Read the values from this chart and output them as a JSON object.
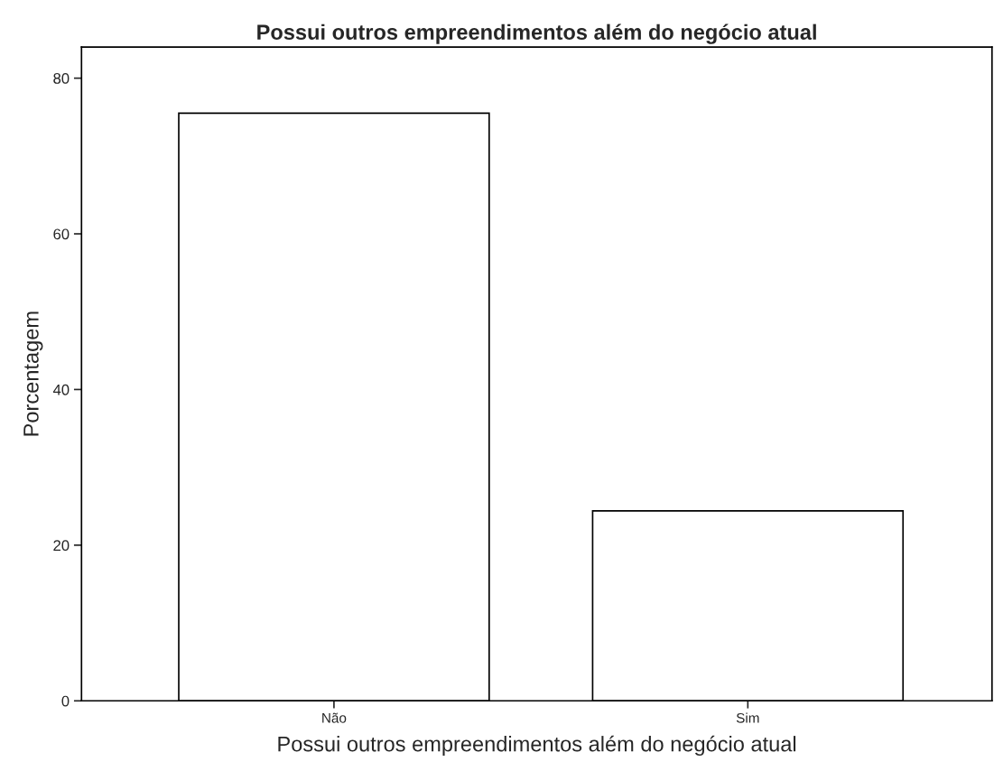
{
  "chart_data": {
    "type": "bar",
    "title": "Possui outros empreendimentos além do negócio atual",
    "xlabel": "Possui outros empreendimentos além do negócio atual",
    "ylabel": "Porcentagem",
    "categories": [
      "Não",
      "Sim"
    ],
    "series": [
      {
        "color": "#ffffff",
        "values": [
          75.5,
          24.4
        ]
      }
    ],
    "ylim": [
      0,
      84
    ],
    "yticks": [
      0,
      20,
      40,
      60,
      80
    ],
    "grid": false,
    "legend": false
  }
}
